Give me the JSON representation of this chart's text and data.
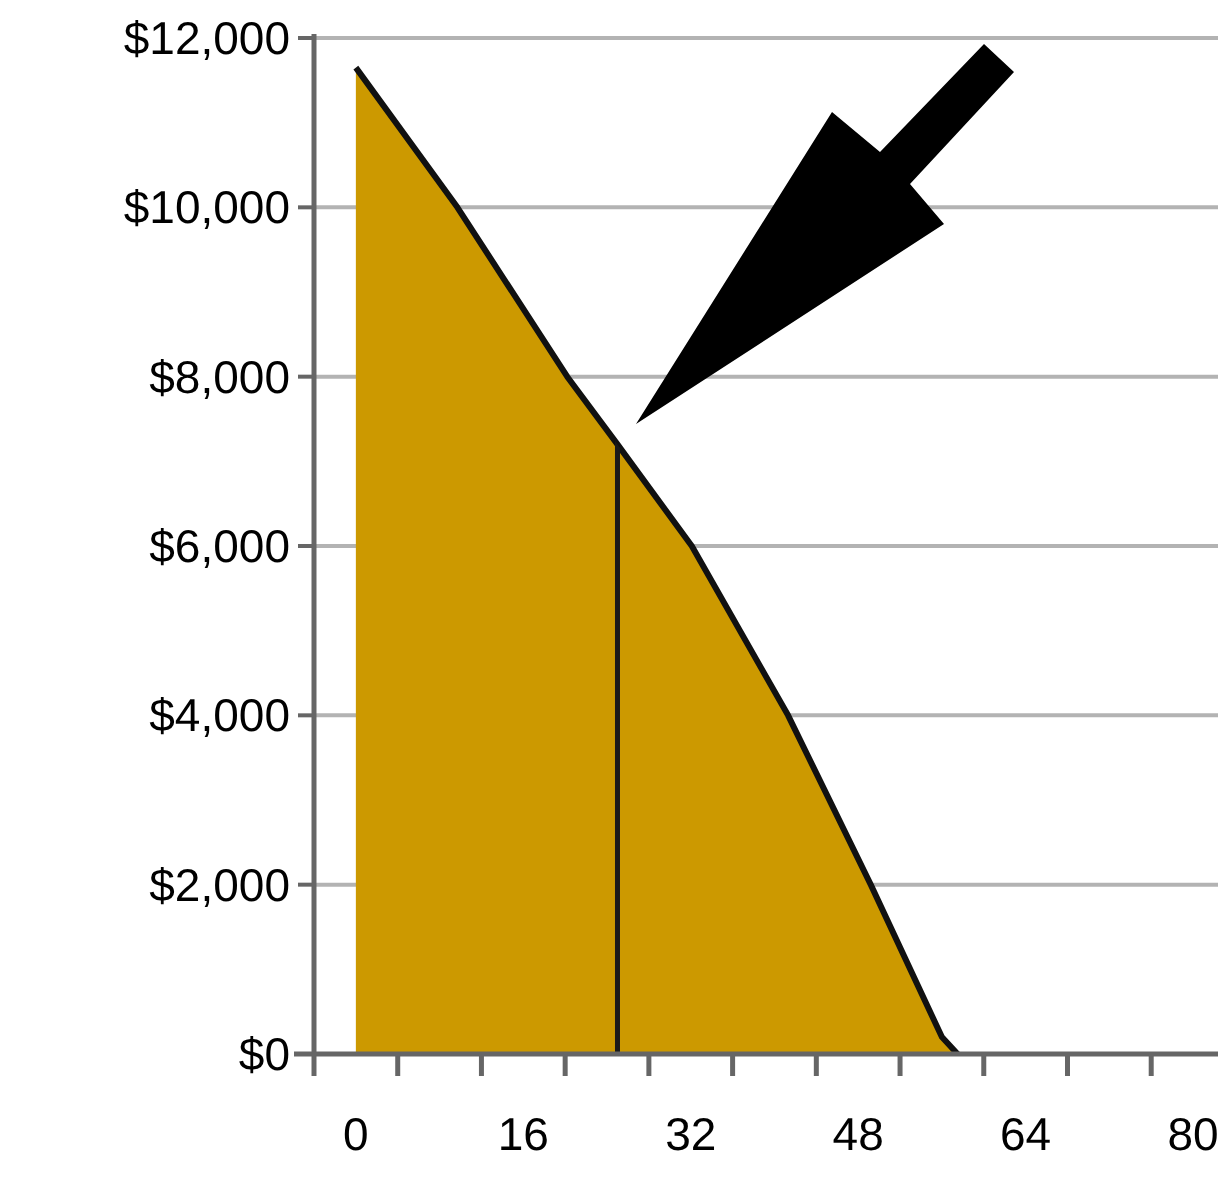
{
  "chart_data": {
    "type": "area",
    "x": [
      0,
      9.7,
      20.2,
      25,
      32.1,
      41.3,
      49.2,
      56,
      57.5
    ],
    "series": [
      {
        "color": "#cc9900",
        "values": [
          11650,
          10000,
          8000,
          7200,
          6000,
          4000,
          2000,
          200,
          0
        ]
      }
    ],
    "xlim": [
      -4,
      82
    ],
    "xticks": [
      {
        "value": -4,
        "label": null
      },
      {
        "value": 0,
        "label": "0"
      },
      {
        "value": 4,
        "label": null
      },
      {
        "value": 12,
        "label": null
      },
      {
        "value": 16,
        "label": "16"
      },
      {
        "value": 20,
        "label": null
      },
      {
        "value": 28,
        "label": null
      },
      {
        "value": 32,
        "label": "32"
      },
      {
        "value": 36,
        "label": null
      },
      {
        "value": 44,
        "label": null
      },
      {
        "value": 48,
        "label": "48"
      },
      {
        "value": 52,
        "label": null
      },
      {
        "value": 60,
        "label": null
      },
      {
        "value": 64,
        "label": "64"
      },
      {
        "value": 68,
        "label": null
      },
      {
        "value": 76,
        "label": null
      },
      {
        "value": 80,
        "label": "80"
      }
    ],
    "ylim": [
      0,
      12000
    ],
    "yticks": [
      {
        "value": 0,
        "label": "$0"
      },
      {
        "value": 2000,
        "label": "$2,000"
      },
      {
        "value": 4000,
        "label": "$4,000"
      },
      {
        "value": 6000,
        "label": "$6,000"
      },
      {
        "value": 8000,
        "label": "$8,000"
      },
      {
        "value": 10000,
        "label": "$10,000"
      },
      {
        "value": 12000,
        "label": "$12,000"
      }
    ],
    "grid": "y",
    "ref_lines": [
      {
        "axis": "x",
        "value": 25,
        "color": "#1a1a1a"
      }
    ]
  }
}
